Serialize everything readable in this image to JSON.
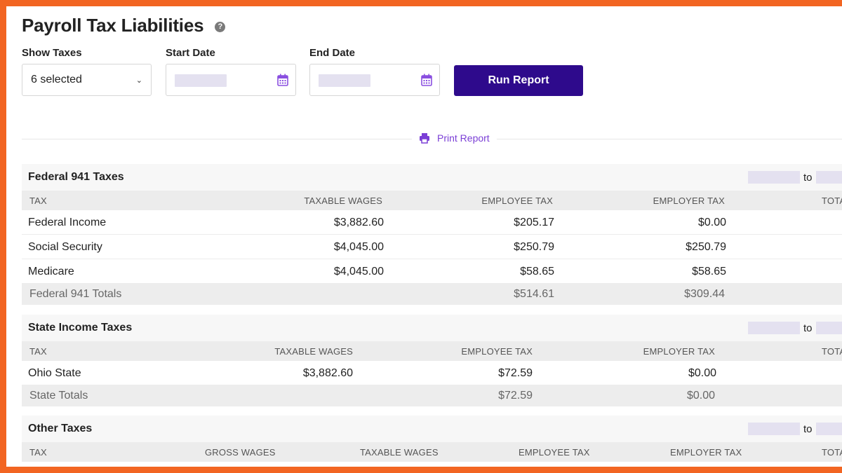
{
  "page": {
    "title": "Payroll Tax Liabilities",
    "help_icon": "?"
  },
  "filters": {
    "show_taxes_label": "Show Taxes",
    "show_taxes_value": "6 selected",
    "start_date_label": "Start Date",
    "end_date_label": "End Date",
    "run_report_label": "Run Report"
  },
  "print_report_label": "Print Report",
  "range_to": "to",
  "federal": {
    "title": "Federal 941 Taxes",
    "columns": [
      "TAX",
      "TAXABLE WAGES",
      "EMPLOYEE TAX",
      "EMPLOYER TAX",
      "TOTA"
    ],
    "rows": [
      {
        "tax": "Federal Income",
        "taxable_wages": "$3,882.60",
        "employee_tax": "$205.17",
        "employer_tax": "$0.00"
      },
      {
        "tax": "Social Security",
        "taxable_wages": "$4,045.00",
        "employee_tax": "$250.79",
        "employer_tax": "$250.79"
      },
      {
        "tax": "Medicare",
        "taxable_wages": "$4,045.00",
        "employee_tax": "$58.65",
        "employer_tax": "$58.65"
      }
    ],
    "totals": {
      "label": "Federal 941 Totals",
      "employee_tax": "$514.61",
      "employer_tax": "$309.44"
    }
  },
  "state": {
    "title": "State Income Taxes",
    "columns": [
      "TAX",
      "TAXABLE WAGES",
      "EMPLOYEE TAX",
      "EMPLOYER TAX",
      "TOTA"
    ],
    "rows": [
      {
        "tax": "Ohio State",
        "taxable_wages": "$3,882.60",
        "employee_tax": "$72.59",
        "employer_tax": "$0.00"
      }
    ],
    "totals": {
      "label": "State Totals",
      "employee_tax": "$72.59",
      "employer_tax": "$0.00"
    }
  },
  "other": {
    "title": "Other Taxes",
    "columns": [
      "TAX",
      "GROSS WAGES",
      "TAXABLE WAGES",
      "EMPLOYEE TAX",
      "EMPLOYER TAX",
      "TOTA"
    ]
  },
  "colors": {
    "frame_border": "#f26522",
    "primary_button": "#2e0a8c",
    "link": "#7b3fd6",
    "date_placeholder": "#e4e1f0"
  }
}
